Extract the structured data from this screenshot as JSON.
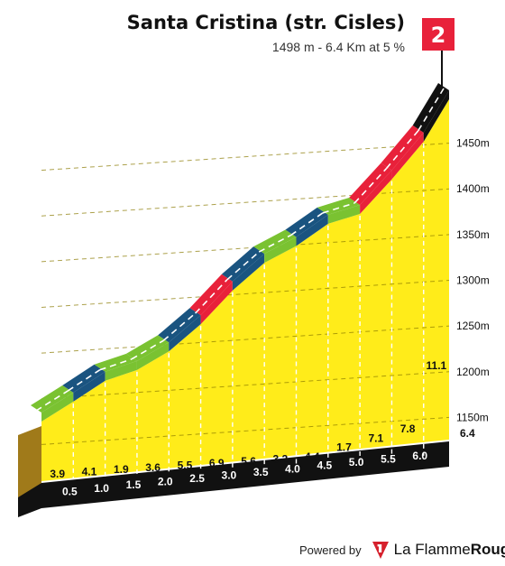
{
  "header": {
    "title": "Santa Cristina (str. Cisles)",
    "subtitle": "1498 m - 6.4 Km at 5 %"
  },
  "flag": {
    "number": "2",
    "color": "#e8213a"
  },
  "chart_data": {
    "type": "area",
    "subtype": "climb-elevation-profile",
    "distance_unit": "km",
    "distance_ticks": [
      "0.5",
      "1.0",
      "1.5",
      "2.0",
      "2.5",
      "3.0",
      "3.5",
      "4.0",
      "4.5",
      "5.0",
      "5.5",
      "6.0",
      "6.4"
    ],
    "segments": [
      {
        "from_km": 0.0,
        "to_km": 0.5,
        "gradient": 3.9,
        "color": "#7ac231"
      },
      {
        "from_km": 0.5,
        "to_km": 1.0,
        "gradient": 4.1,
        "color": "#1a5480"
      },
      {
        "from_km": 1.0,
        "to_km": 1.5,
        "gradient": 1.9,
        "color": "#7ac231"
      },
      {
        "from_km": 1.5,
        "to_km": 2.0,
        "gradient": 3.6,
        "color": "#7ac231"
      },
      {
        "from_km": 2.0,
        "to_km": 2.5,
        "gradient": 5.5,
        "color": "#1a5480"
      },
      {
        "from_km": 2.5,
        "to_km": 3.0,
        "gradient": 6.9,
        "color": "#e8213a"
      },
      {
        "from_km": 3.0,
        "to_km": 3.5,
        "gradient": 5.6,
        "color": "#1a5480"
      },
      {
        "from_km": 3.5,
        "to_km": 4.0,
        "gradient": 3.2,
        "color": "#7ac231"
      },
      {
        "from_km": 4.0,
        "to_km": 4.5,
        "gradient": 4.4,
        "color": "#1a5480"
      },
      {
        "from_km": 4.5,
        "to_km": 5.0,
        "gradient": 1.7,
        "color": "#7ac231"
      },
      {
        "from_km": 5.0,
        "to_km": 5.5,
        "gradient": 7.1,
        "color": "#e8213a"
      },
      {
        "from_km": 5.5,
        "to_km": 6.0,
        "gradient": 7.8,
        "color": "#e8213a"
      },
      {
        "from_km": 6.0,
        "to_km": 6.4,
        "gradient": 11.1,
        "color": "#111111"
      }
    ],
    "elevation_axis": {
      "unit": "m",
      "ticks": [
        1150,
        1200,
        1250,
        1300,
        1350,
        1400,
        1450
      ],
      "tick_labels": [
        "1150m",
        "1200m",
        "1250m",
        "1300m",
        "1350m",
        "1400m",
        "1450m"
      ],
      "range": [
        1120,
        1498
      ]
    },
    "summit_elevation_m": 1498,
    "grid": true,
    "fill_color": "#ffec1a"
  },
  "footer": {
    "powered_by": "Powered by",
    "brand_name": "La Flamme",
    "brand_accent": "Rouge",
    "brand_color": "#d6202c"
  }
}
